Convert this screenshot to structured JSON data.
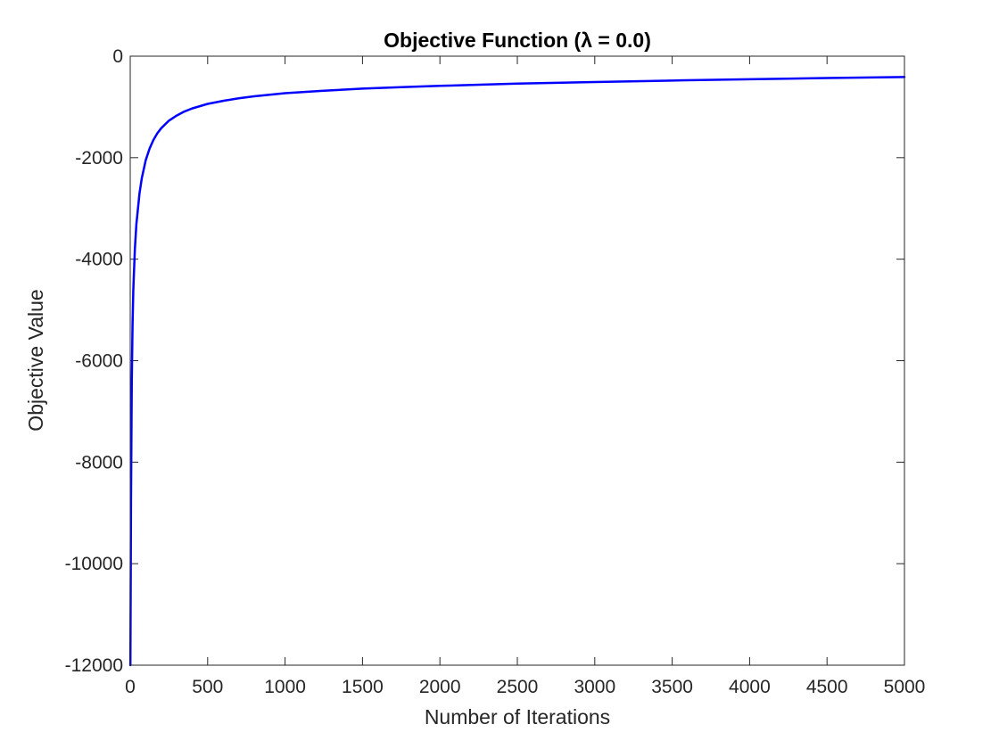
{
  "chart_data": {
    "type": "line",
    "title": "Objective Function (λ = 0.0)",
    "xlabel": "Number of Iterations",
    "ylabel": "Objective Value",
    "xlim": [
      0,
      5000
    ],
    "ylim": [
      -12000,
      0
    ],
    "xticks": [
      0,
      500,
      1000,
      1500,
      2000,
      2500,
      3000,
      3500,
      4000,
      4500,
      5000
    ],
    "yticks": [
      0,
      -2000,
      -4000,
      -6000,
      -8000,
      -10000,
      -12000
    ],
    "grid": false,
    "line_color": "#0000ff",
    "series": [
      {
        "x": [
          1,
          3,
          5,
          10,
          15,
          20,
          30,
          40,
          50,
          60,
          75,
          100,
          125,
          150,
          175,
          200,
          250,
          300,
          350,
          400,
          500,
          600,
          700,
          800,
          1000,
          1250,
          1500,
          1750,
          2000,
          2500,
          3000,
          3500,
          4000,
          4500,
          5000
        ],
        "values": [
          -12000,
          -10500,
          -8800,
          -6400,
          -5300,
          -4600,
          -3800,
          -3300,
          -3000,
          -2700,
          -2400,
          -2050,
          -1820,
          -1650,
          -1520,
          -1420,
          -1270,
          -1170,
          -1090,
          -1030,
          -940,
          -880,
          -830,
          -790,
          -730,
          -680,
          -640,
          -610,
          -585,
          -540,
          -510,
          -480,
          -455,
          -430,
          -410
        ]
      }
    ]
  }
}
